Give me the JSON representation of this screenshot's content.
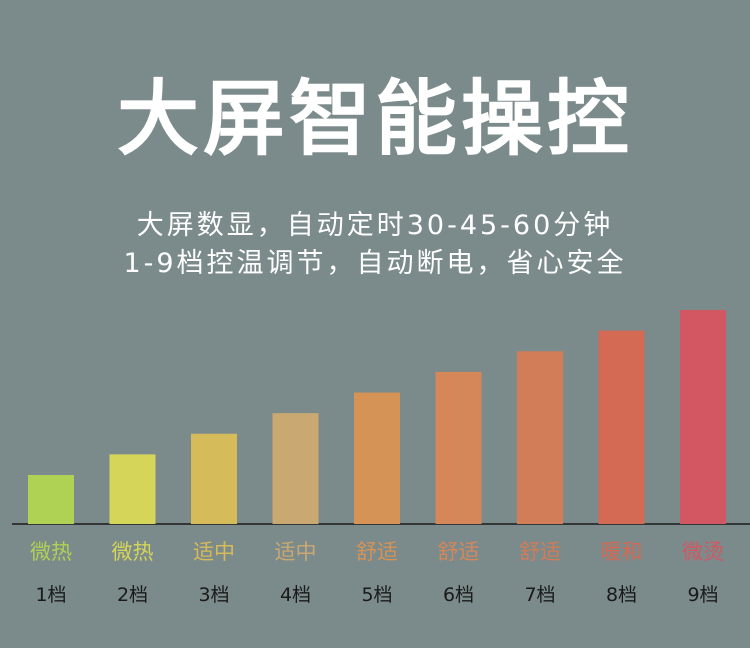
{
  "header": {
    "title": "大屏智能操控",
    "subtitle_line1": "大屏数显，自动定时30-45-60分钟",
    "subtitle_line2": "1-9档控温调节，自动断电，省心安全"
  },
  "chart_data": {
    "type": "bar",
    "categories": [
      "1档",
      "2档",
      "3档",
      "4档",
      "5档",
      "6档",
      "7档",
      "8档",
      "9档"
    ],
    "heat_labels": [
      "微热",
      "微热",
      "适中",
      "适中",
      "舒适",
      "舒适",
      "舒适",
      "暖和",
      "微烫"
    ],
    "values": [
      1,
      2,
      3,
      4,
      5,
      6,
      7,
      8,
      9
    ],
    "colors": [
      "#afd254",
      "#d5d55a",
      "#d6bb5a",
      "#c9a872",
      "#d69356",
      "#d5875a",
      "#d27c58",
      "#d46a54",
      "#d35762"
    ],
    "title": "",
    "xlabel": "",
    "ylabel": "",
    "ylim": [
      0,
      9
    ],
    "grid": false,
    "legend": "none"
  }
}
